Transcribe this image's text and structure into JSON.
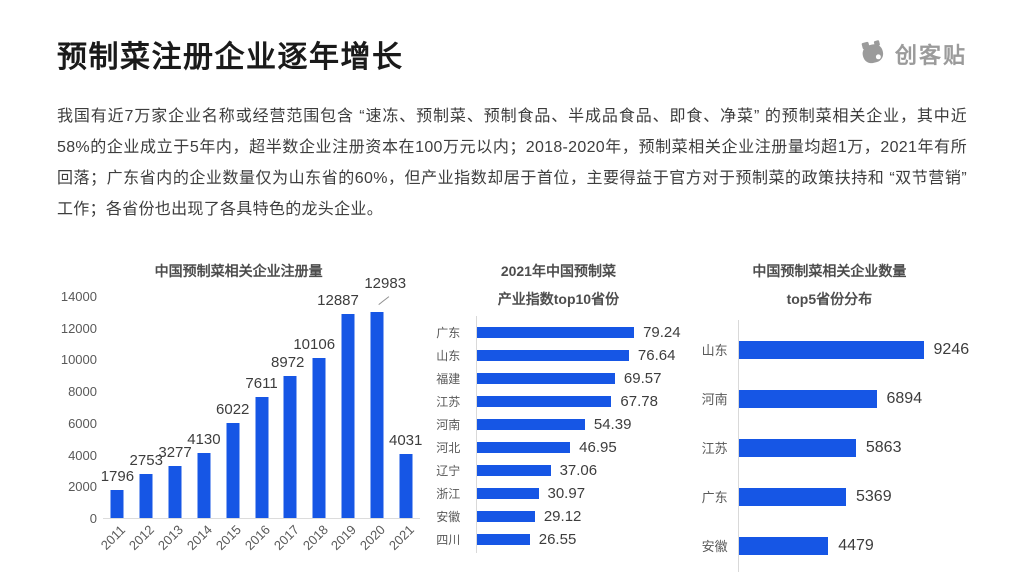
{
  "page": {
    "title": "预制菜注册企业逐年增长",
    "paragraph": "我国有近7万家企业名称或经营范围包含 “速冻、预制菜、预制食品、半成品食品、即食、净菜” 的预制菜相关企业，其中近58%的企业成立于5年内，超半数企业注册资本在100万元以内；2018-2020年，预制菜相关企业注册量均超1万，2021年有所回落；广东省内的企业数量仅为山东省的60%，但产业指数却居于首位，主要得益于官方对于预制菜的政策扶持和 “双节营销” 工作；各省份也出现了各具特色的龙头企业。",
    "logo_text": "创客贴"
  },
  "colors": {
    "bar_blue": "#1656E5",
    "title_text": "#1A1A1A",
    "body_text": "#3D3D3D",
    "muted_text": "#595959",
    "logo_gray": "#9B9B9B",
    "axis_line": "#D9D9D9"
  },
  "chart_data": [
    {
      "type": "bar",
      "orientation": "vertical",
      "title": "中国预制菜相关企业注册量",
      "categories": [
        "2011",
        "2012",
        "2013",
        "2014",
        "2015",
        "2016",
        "2017",
        "2018",
        "2019",
        "2020",
        "2021"
      ],
      "values": [
        1796,
        2753,
        3277,
        4130,
        6022,
        7611,
        8972,
        10106,
        12887,
        12983,
        4031
      ],
      "xlabel": "",
      "ylabel": "",
      "ylim": [
        0,
        14000
      ],
      "yticks": [
        0,
        2000,
        4000,
        6000,
        8000,
        10000,
        12000,
        14000
      ],
      "grid": false,
      "bar_color": "#1656E5"
    },
    {
      "type": "bar",
      "orientation": "horizontal",
      "title": "2021年中国预制菜",
      "subtitle": "产业指数top10省份",
      "categories": [
        "广东",
        "山东",
        "福建",
        "江苏",
        "河南",
        "河北",
        "辽宁",
        "浙江",
        "安徽",
        "四川"
      ],
      "values": [
        79.24,
        76.64,
        69.57,
        67.78,
        54.39,
        46.95,
        37.06,
        30.97,
        29.12,
        26.55
      ],
      "xlabel": "",
      "ylabel": "",
      "xlim": [
        0,
        88
      ],
      "grid": false,
      "bar_color": "#1656E5"
    },
    {
      "type": "bar",
      "orientation": "horizontal",
      "title": "中国预制菜相关企业数量",
      "subtitle": "top5省份分布",
      "categories": [
        "山东",
        "河南",
        "江苏",
        "广东",
        "安徽"
      ],
      "values": [
        9246,
        6894,
        5863,
        5369,
        4479
      ],
      "xlabel": "",
      "ylabel": "",
      "xlim": [
        0,
        10500
      ],
      "grid": false,
      "bar_color": "#1656E5"
    }
  ]
}
